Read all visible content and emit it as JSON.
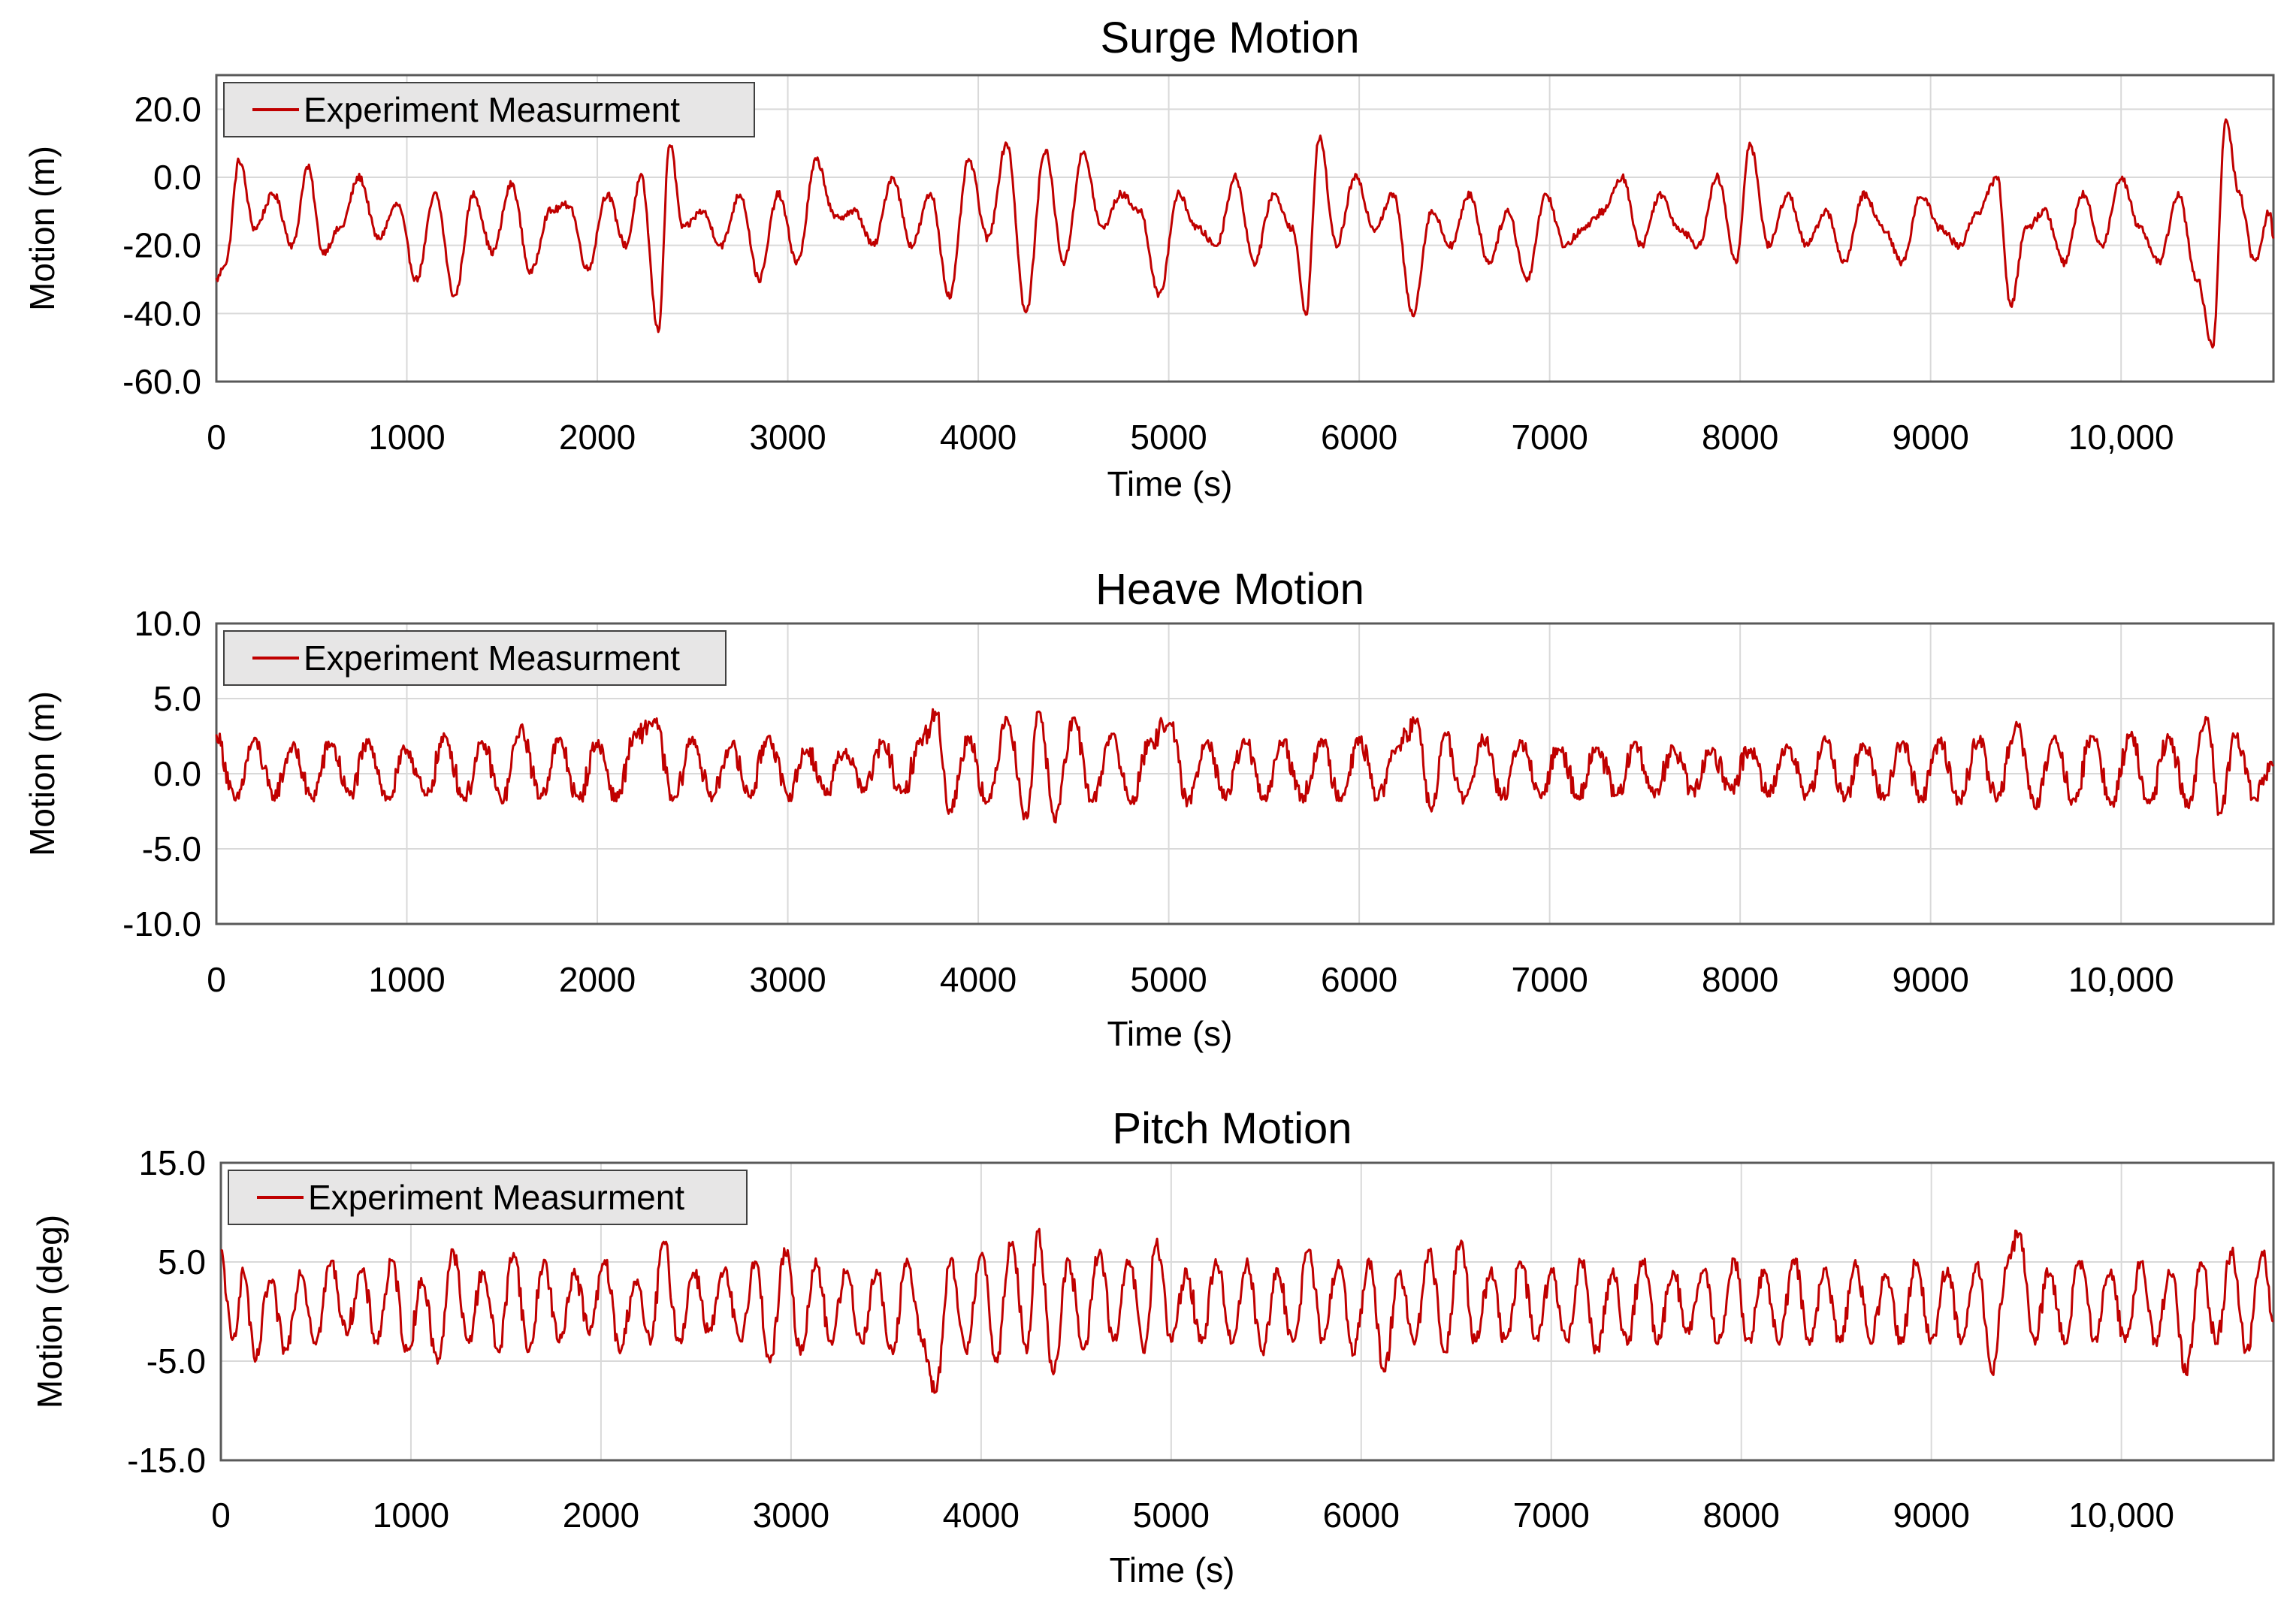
{
  "chart_data": [
    {
      "type": "line",
      "title": "Surge Motion",
      "xlabel": "Time (s)",
      "ylabel": "Motion (m)",
      "xlim": [
        0,
        10800
      ],
      "ylim": [
        -60,
        30
      ],
      "x_ticks": [
        0,
        1000,
        2000,
        3000,
        4000,
        5000,
        6000,
        7000,
        8000,
        9000,
        10000
      ],
      "x_tick_labels": [
        "0",
        "1000",
        "2000",
        "3000",
        "4000",
        "5000",
        "6000",
        "7000",
        "8000",
        "9000",
        "10,000"
      ],
      "y_ticks": [
        -60,
        -40,
        -20,
        0,
        20
      ],
      "y_tick_labels": [
        "-60.0",
        "-40.0",
        "-20.0",
        "0.0",
        "20.0"
      ],
      "grid": true,
      "legend_position": "top-left",
      "series": [
        {
          "name": "Experiment Measurment",
          "color": "#C00000",
          "x": [
            0,
            50,
            120,
            200,
            300,
            400,
            480,
            560,
            650,
            750,
            850,
            950,
            1050,
            1150,
            1250,
            1350,
            1450,
            1550,
            1650,
            1750,
            1850,
            1950,
            2050,
            2150,
            2230,
            2320,
            2380,
            2450,
            2550,
            2650,
            2750,
            2850,
            2950,
            3050,
            3150,
            3250,
            3350,
            3450,
            3550,
            3650,
            3750,
            3850,
            3950,
            4050,
            4150,
            4250,
            4350,
            4450,
            4550,
            4650,
            4750,
            4850,
            4950,
            5050,
            5150,
            5250,
            5350,
            5450,
            5550,
            5650,
            5720,
            5790,
            5880,
            5980,
            6080,
            6180,
            6280,
            6380,
            6480,
            6580,
            6680,
            6780,
            6880,
            6980,
            7080,
            7180,
            7280,
            7380,
            7480,
            7580,
            7680,
            7780,
            7880,
            7980,
            8050,
            8150,
            8250,
            8350,
            8450,
            8550,
            8650,
            8750,
            8850,
            8950,
            9050,
            9150,
            9250,
            9350,
            9420,
            9500,
            9600,
            9700,
            9800,
            9900,
            10000,
            10100,
            10200,
            10300,
            10400,
            10480,
            10550,
            10620,
            10700,
            10780,
            10800
          ],
          "y": [
            -30,
            -25,
            5,
            -15,
            -5,
            -20,
            3,
            -22,
            -15,
            0,
            -18,
            -8,
            -30,
            -5,
            -35,
            -5,
            -22,
            -2,
            -28,
            -10,
            -8,
            -27,
            -5,
            -20,
            0,
            -45,
            10,
            -15,
            -10,
            -20,
            -5,
            -30,
            -5,
            -25,
            5,
            -12,
            -10,
            -20,
            0,
            -20,
            -5,
            -35,
            5,
            -18,
            10,
            -40,
            8,
            -25,
            7,
            -15,
            -5,
            -10,
            -35,
            -5,
            -15,
            -20,
            0,
            -25,
            -5,
            -15,
            -40,
            12,
            -20,
            0,
            -15,
            -5,
            -40,
            -10,
            -20,
            -5,
            -25,
            -10,
            -30,
            -5,
            -20,
            -15,
            -10,
            0,
            -20,
            -5,
            -15,
            -20,
            0,
            -25,
            10,
            -20,
            -5,
            -20,
            -10,
            -25,
            -5,
            -15,
            -25,
            -5,
            -15,
            -20,
            -10,
            0,
            -38,
            -15,
            -10,
            -25,
            -5,
            -20,
            0,
            -15,
            -25,
            -5,
            -30,
            -50,
            17,
            -5,
            -25,
            -10,
            -18
          ]
        }
      ]
    },
    {
      "type": "line",
      "title": "Heave Motion",
      "xlabel": "Time (s)",
      "ylabel": "Motion (m)",
      "xlim": [
        0,
        10800
      ],
      "ylim": [
        -10,
        10
      ],
      "x_ticks": [
        0,
        1000,
        2000,
        3000,
        4000,
        5000,
        6000,
        7000,
        8000,
        9000,
        10000
      ],
      "x_tick_labels": [
        "0",
        "1000",
        "2000",
        "3000",
        "4000",
        "5000",
        "6000",
        "7000",
        "8000",
        "9000",
        "10,000"
      ],
      "y_ticks": [
        -10,
        -5,
        0,
        5,
        10
      ],
      "y_tick_labels": [
        "-10.0",
        "-5.0",
        "0.0",
        "5.0",
        "10.0"
      ],
      "grid": true,
      "legend_position": "top-left",
      "series": [
        {
          "name": "Experiment Measurment",
          "color": "#C00000",
          "x": [
            0,
            100,
            200,
            300,
            400,
            500,
            600,
            700,
            800,
            900,
            1000,
            1100,
            1200,
            1300,
            1400,
            1500,
            1600,
            1700,
            1800,
            1900,
            2000,
            2100,
            2200,
            2300,
            2400,
            2500,
            2600,
            2700,
            2800,
            2900,
            3000,
            3100,
            3200,
            3300,
            3400,
            3500,
            3600,
            3700,
            3780,
            3850,
            3950,
            4050,
            4150,
            4250,
            4320,
            4400,
            4500,
            4600,
            4700,
            4800,
            4900,
            5000,
            5100,
            5200,
            5300,
            5400,
            5500,
            5600,
            5700,
            5800,
            5900,
            6000,
            6100,
            6200,
            6300,
            6380,
            6450,
            6550,
            6650,
            6750,
            6850,
            6950,
            7050,
            7150,
            7250,
            7350,
            7450,
            7550,
            7650,
            7750,
            7850,
            7950,
            8050,
            8150,
            8250,
            8350,
            8450,
            8550,
            8650,
            8750,
            8850,
            8950,
            9050,
            9150,
            9250,
            9350,
            9450,
            9550,
            9650,
            9750,
            9850,
            9950,
            10050,
            10150,
            10250,
            10350,
            10450,
            10520,
            10600,
            10700,
            10800
          ],
          "y": [
            2.5,
            -1.8,
            2.2,
            -1.5,
            1.8,
            -1.6,
            2.0,
            -1.4,
            2.1,
            -1.7,
            1.6,
            -1.5,
            2.4,
            -1.6,
            1.9,
            -1.8,
            3.0,
            -1.5,
            2.2,
            -1.7,
            2.0,
            -1.6,
            2.5,
            3.5,
            -1.8,
            2.3,
            -1.6,
            1.9,
            -1.4,
            2.5,
            -1.5,
            1.6,
            -1.2,
            1.5,
            -1.0,
            2.0,
            -1.4,
            2.2,
            4.0,
            -2.5,
            2.4,
            -2.0,
            3.8,
            -2.8,
            4.2,
            -3.0,
            3.5,
            -1.8,
            2.6,
            -1.9,
            2.0,
            3.5,
            -1.9,
            2.3,
            -1.6,
            2.2,
            -1.7,
            2.0,
            -1.6,
            2.1,
            -1.5,
            2.2,
            -1.5,
            1.8,
            3.4,
            -2.5,
            2.6,
            -1.8,
            2.3,
            -1.5,
            2.0,
            -1.6,
            1.8,
            -1.4,
            1.7,
            -1.5,
            1.9,
            -1.4,
            1.6,
            -1.2,
            1.5,
            -1.0,
            1.6,
            -1.2,
            1.8,
            -1.5,
            2.2,
            -1.6,
            1.9,
            -1.5,
            2.0,
            -1.6,
            2.1,
            -1.8,
            2.2,
            -1.7,
            3.3,
            -2.2,
            2.6,
            -1.8,
            2.5,
            -2.0,
            2.5,
            -1.9,
            2.4,
            -2.0,
            3.5,
            -2.6,
            2.5,
            -1.5,
            0.5
          ]
        }
      ]
    },
    {
      "type": "line",
      "title": "Pitch Motion",
      "xlabel": "Time (s)",
      "ylabel": "Motion (deg)",
      "xlim": [
        0,
        10800
      ],
      "ylim": [
        -15,
        15
      ],
      "x_ticks": [
        0,
        1000,
        2000,
        3000,
        4000,
        5000,
        6000,
        7000,
        8000,
        9000,
        10000
      ],
      "x_tick_labels": [
        "0",
        "1000",
        "2000",
        "3000",
        "4000",
        "5000",
        "6000",
        "7000",
        "8000",
        "9000",
        "10,000"
      ],
      "y_ticks": [
        -15,
        -5,
        5,
        15
      ],
      "y_tick_labels": [
        "-15.0",
        "-5.0",
        "5.0",
        "15.0"
      ],
      "grid": true,
      "legend_position": "top-left",
      "series": [
        {
          "name": "Experiment Measurment",
          "color": "#C00000",
          "x": [
            0,
            60,
            120,
            180,
            260,
            340,
            420,
            500,
            580,
            660,
            740,
            820,
            900,
            980,
            1060,
            1140,
            1220,
            1300,
            1380,
            1460,
            1540,
            1620,
            1700,
            1780,
            1860,
            1940,
            2020,
            2100,
            2180,
            2260,
            2330,
            2410,
            2490,
            2570,
            2650,
            2730,
            2810,
            2890,
            2970,
            3050,
            3130,
            3210,
            3290,
            3370,
            3450,
            3530,
            3610,
            3690,
            3760,
            3840,
            3920,
            4000,
            4080,
            4160,
            4240,
            4300,
            4380,
            4460,
            4540,
            4620,
            4700,
            4780,
            4860,
            4920,
            5000,
            5080,
            5160,
            5240,
            5320,
            5400,
            5480,
            5560,
            5640,
            5720,
            5800,
            5880,
            5960,
            6040,
            6120,
            6200,
            6280,
            6360,
            6440,
            6520,
            6600,
            6680,
            6760,
            6840,
            6920,
            7000,
            7080,
            7160,
            7240,
            7320,
            7400,
            7480,
            7560,
            7640,
            7720,
            7800,
            7880,
            7960,
            8040,
            8120,
            8200,
            8280,
            8360,
            8440,
            8520,
            8600,
            8680,
            8760,
            8840,
            8920,
            9000,
            9080,
            9160,
            9240,
            9320,
            9400,
            9460,
            9540,
            9620,
            9700,
            9780,
            9860,
            9940,
            10020,
            10100,
            10180,
            10260,
            10340,
            10420,
            10500,
            10580,
            10660,
            10740,
            10800
          ],
          "y": [
            6,
            -3,
            4,
            -5,
            3,
            -4,
            4,
            -3,
            5,
            -2,
            4,
            -3,
            5,
            -4,
            3,
            -5,
            6,
            -3,
            4,
            -4,
            6,
            -4,
            5,
            -3,
            4,
            -2,
            5,
            -4,
            3,
            -3,
            7,
            -3,
            4,
            -2,
            4,
            -3,
            5,
            -5,
            6,
            -4,
            5,
            -3,
            4,
            -3,
            4,
            -4,
            5,
            -3,
            -8,
            5,
            -4,
            6,
            -5,
            7,
            -4,
            8,
            -6,
            5,
            -4,
            6,
            -3,
            5,
            -4,
            7,
            -3,
            4,
            -3,
            5,
            -3,
            5,
            -4,
            4,
            -3,
            6,
            -3,
            5,
            -4,
            5,
            -6,
            4,
            -3,
            6,
            -4,
            7,
            -3,
            4,
            -3,
            5,
            -3,
            4,
            -3,
            5,
            -4,
            4,
            -3,
            5,
            -3,
            4,
            -2,
            4,
            -3,
            5,
            -3,
            4,
            -3,
            5,
            -3,
            4,
            -3,
            5,
            -3,
            4,
            -3,
            5,
            -3,
            4,
            -3,
            5,
            -6,
            5,
            8,
            -3,
            4,
            -3,
            5,
            -3,
            4,
            -3,
            5,
            -3,
            4,
            -6,
            5,
            -3,
            6,
            -4,
            6,
            -1
          ]
        }
      ]
    }
  ]
}
